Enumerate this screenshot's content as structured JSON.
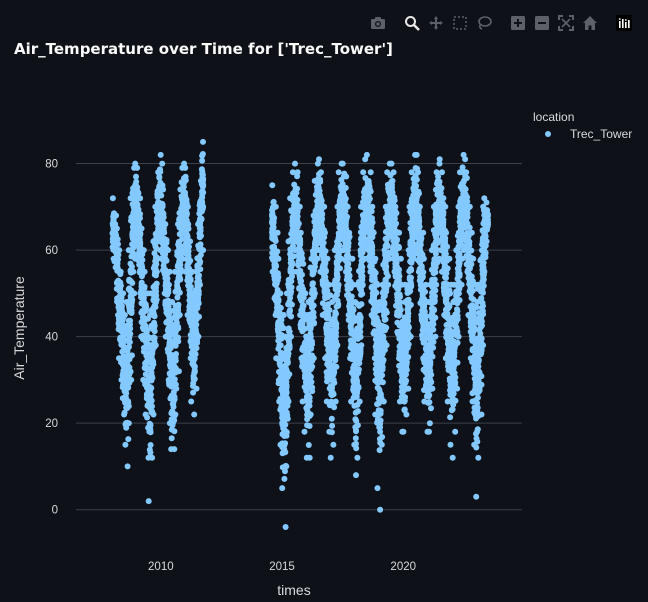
{
  "chart_data": {
    "type": "scatter",
    "title": "Air_Temperature over Time for ['Trec_Tower']",
    "xlabel": "times",
    "ylabel": "Air_Temperature",
    "xlim": [
      2006.5,
      2024.9
    ],
    "ylim": [
      -7,
      97
    ],
    "x_ticks": [
      2010,
      2015,
      2020
    ],
    "y_ticks": [
      0,
      20,
      40,
      60,
      80
    ],
    "grid": true,
    "legend_title": "location",
    "legend_position": "top-right",
    "series_color": "#83c9ff",
    "series": [
      {
        "name": "Trec_Tower",
        "description": "hourly-ish readings, summarised per month as [year_fraction, min, max, mean]",
        "monthly": [
          [
            2008.0,
            58,
            72,
            64
          ],
          [
            2008.08,
            56,
            68,
            62
          ],
          [
            2008.17,
            45,
            65,
            56
          ],
          [
            2008.25,
            35,
            60,
            48
          ],
          [
            2008.33,
            30,
            55,
            42
          ],
          [
            2008.42,
            22,
            50,
            36
          ],
          [
            2008.5,
            15,
            45,
            30
          ],
          [
            2008.58,
            10,
            48,
            32
          ],
          [
            2008.67,
            20,
            60,
            42
          ],
          [
            2008.75,
            30,
            72,
            55
          ],
          [
            2008.83,
            50,
            79,
            66
          ],
          [
            2008.92,
            58,
            80,
            70
          ],
          [
            2009.0,
            58,
            79,
            68
          ],
          [
            2009.08,
            50,
            72,
            62
          ],
          [
            2009.17,
            40,
            65,
            54
          ],
          [
            2009.25,
            30,
            60,
            45
          ],
          [
            2009.33,
            22,
            55,
            38
          ],
          [
            2009.42,
            12,
            50,
            30
          ],
          [
            2009.5,
            2,
            45,
            26
          ],
          [
            2009.58,
            12,
            50,
            32
          ],
          [
            2009.67,
            22,
            62,
            44
          ],
          [
            2009.75,
            38,
            70,
            56
          ],
          [
            2009.83,
            55,
            78,
            68
          ],
          [
            2009.92,
            60,
            82,
            72
          ],
          [
            2010.0,
            58,
            80,
            68
          ],
          [
            2010.08,
            50,
            74,
            62
          ],
          [
            2010.17,
            40,
            66,
            54
          ],
          [
            2010.25,
            30,
            60,
            46
          ],
          [
            2010.33,
            20,
            55,
            38
          ],
          [
            2010.42,
            14,
            48,
            30
          ],
          [
            2010.5,
            14,
            46,
            30
          ],
          [
            2010.58,
            22,
            55,
            40
          ],
          [
            2010.67,
            32,
            66,
            50
          ],
          [
            2010.75,
            45,
            74,
            60
          ],
          [
            2010.83,
            58,
            79,
            68
          ],
          [
            2010.92,
            60,
            80,
            71
          ],
          [
            2011.0,
            55,
            79,
            67
          ],
          [
            2011.08,
            45,
            70,
            58
          ],
          [
            2011.17,
            35,
            62,
            50
          ],
          [
            2011.25,
            25,
            55,
            42
          ],
          [
            2011.33,
            22,
            48,
            36
          ],
          [
            2011.42,
            28,
            55,
            42
          ],
          [
            2011.5,
            40,
            66,
            54
          ],
          [
            2011.58,
            52,
            76,
            64
          ],
          [
            2011.67,
            60,
            85,
            72
          ],
          [
            2014.58,
            55,
            75,
            66
          ],
          [
            2014.67,
            45,
            70,
            58
          ],
          [
            2014.75,
            35,
            64,
            50
          ],
          [
            2014.83,
            25,
            58,
            42
          ],
          [
            2014.92,
            15,
            50,
            34
          ],
          [
            2015.0,
            5,
            45,
            28
          ],
          [
            2015.08,
            -4,
            40,
            24
          ],
          [
            2015.17,
            10,
            50,
            32
          ],
          [
            2015.25,
            25,
            62,
            45
          ],
          [
            2015.33,
            40,
            72,
            58
          ],
          [
            2015.42,
            55,
            78,
            66
          ],
          [
            2015.5,
            60,
            80,
            70
          ],
          [
            2015.58,
            55,
            78,
            66
          ],
          [
            2015.67,
            45,
            70,
            58
          ],
          [
            2015.75,
            35,
            64,
            50
          ],
          [
            2015.83,
            25,
            58,
            42
          ],
          [
            2015.92,
            18,
            50,
            35
          ],
          [
            2016.0,
            12,
            45,
            30
          ],
          [
            2016.08,
            12,
            48,
            32
          ],
          [
            2016.17,
            22,
            58,
            42
          ],
          [
            2016.25,
            35,
            68,
            54
          ],
          [
            2016.33,
            50,
            76,
            64
          ],
          [
            2016.42,
            58,
            80,
            70
          ],
          [
            2016.5,
            60,
            81,
            72
          ],
          [
            2016.58,
            55,
            78,
            66
          ],
          [
            2016.67,
            45,
            70,
            58
          ],
          [
            2016.75,
            35,
            64,
            50
          ],
          [
            2016.83,
            25,
            58,
            42
          ],
          [
            2016.92,
            18,
            52,
            36
          ],
          [
            2017.0,
            12,
            48,
            32
          ],
          [
            2017.08,
            15,
            52,
            35
          ],
          [
            2017.17,
            25,
            60,
            44
          ],
          [
            2017.25,
            38,
            70,
            56
          ],
          [
            2017.33,
            52,
            78,
            66
          ],
          [
            2017.42,
            58,
            80,
            70
          ],
          [
            2017.5,
            60,
            80,
            71
          ],
          [
            2017.58,
            55,
            77,
            66
          ],
          [
            2017.67,
            45,
            70,
            58
          ],
          [
            2017.75,
            35,
            64,
            50
          ],
          [
            2017.83,
            25,
            58,
            42
          ],
          [
            2017.92,
            15,
            52,
            35
          ],
          [
            2018.0,
            8,
            48,
            30
          ],
          [
            2018.08,
            12,
            52,
            34
          ],
          [
            2018.17,
            25,
            60,
            44
          ],
          [
            2018.25,
            38,
            70,
            56
          ],
          [
            2018.33,
            52,
            78,
            66
          ],
          [
            2018.42,
            58,
            81,
            70
          ],
          [
            2018.5,
            60,
            82,
            72
          ],
          [
            2018.58,
            55,
            78,
            66
          ],
          [
            2018.67,
            45,
            70,
            58
          ],
          [
            2018.75,
            35,
            64,
            50
          ],
          [
            2018.83,
            22,
            58,
            42
          ],
          [
            2018.92,
            5,
            52,
            34
          ],
          [
            2019.0,
            0,
            48,
            30
          ],
          [
            2019.08,
            15,
            52,
            35
          ],
          [
            2019.17,
            25,
            60,
            44
          ],
          [
            2019.25,
            38,
            70,
            56
          ],
          [
            2019.33,
            52,
            78,
            66
          ],
          [
            2019.42,
            58,
            80,
            70
          ],
          [
            2019.5,
            60,
            80,
            71
          ],
          [
            2019.58,
            55,
            78,
            66
          ],
          [
            2019.67,
            45,
            70,
            58
          ],
          [
            2019.75,
            35,
            64,
            50
          ],
          [
            2019.83,
            25,
            58,
            42
          ],
          [
            2019.92,
            18,
            52,
            36
          ],
          [
            2020.0,
            18,
            48,
            33
          ],
          [
            2020.08,
            22,
            52,
            36
          ],
          [
            2020.17,
            28,
            60,
            45
          ],
          [
            2020.25,
            40,
            70,
            56
          ],
          [
            2020.33,
            52,
            78,
            66
          ],
          [
            2020.42,
            58,
            82,
            70
          ],
          [
            2020.5,
            60,
            82,
            72
          ],
          [
            2020.58,
            55,
            78,
            66
          ],
          [
            2020.67,
            45,
            70,
            58
          ],
          [
            2020.75,
            35,
            64,
            50
          ],
          [
            2020.83,
            25,
            58,
            42
          ],
          [
            2020.92,
            18,
            52,
            36
          ],
          [
            2021.0,
            18,
            48,
            33
          ],
          [
            2021.08,
            20,
            52,
            36
          ],
          [
            2021.17,
            28,
            60,
            45
          ],
          [
            2021.25,
            40,
            70,
            56
          ],
          [
            2021.33,
            52,
            78,
            66
          ],
          [
            2021.42,
            58,
            80,
            70
          ],
          [
            2021.5,
            60,
            81,
            71
          ],
          [
            2021.58,
            55,
            78,
            66
          ],
          [
            2021.67,
            45,
            70,
            58
          ],
          [
            2021.75,
            35,
            64,
            50
          ],
          [
            2021.83,
            25,
            58,
            42
          ],
          [
            2021.92,
            15,
            52,
            35
          ],
          [
            2022.0,
            12,
            48,
            32
          ],
          [
            2022.08,
            18,
            52,
            36
          ],
          [
            2022.17,
            28,
            60,
            45
          ],
          [
            2022.25,
            40,
            70,
            56
          ],
          [
            2022.33,
            52,
            78,
            66
          ],
          [
            2022.42,
            58,
            82,
            70
          ],
          [
            2022.5,
            60,
            81,
            71
          ],
          [
            2022.58,
            55,
            78,
            66
          ],
          [
            2022.67,
            45,
            70,
            58
          ],
          [
            2022.75,
            35,
            64,
            50
          ],
          [
            2022.83,
            25,
            58,
            42
          ],
          [
            2022.92,
            15,
            52,
            35
          ],
          [
            2023.0,
            3,
            48,
            30
          ],
          [
            2023.08,
            12,
            52,
            34
          ],
          [
            2023.17,
            22,
            60,
            44
          ],
          [
            2023.25,
            38,
            70,
            56
          ],
          [
            2023.33,
            55,
            72,
            64
          ],
          [
            2023.42,
            62,
            71,
            67
          ]
        ]
      }
    ]
  },
  "toolbar": {
    "icons": [
      "camera-icon",
      "zoom-icon",
      "pan-icon",
      "box-select-icon",
      "lasso-icon",
      "zoom-in-icon",
      "zoom-out-icon",
      "autoscale-icon",
      "home-icon",
      "plotly-logo-icon"
    ]
  }
}
